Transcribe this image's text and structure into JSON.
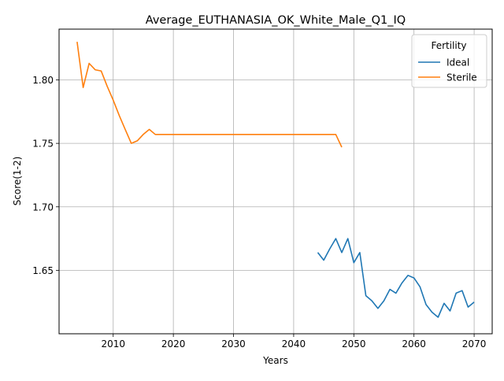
{
  "chart_data": {
    "type": "line",
    "title": "Average_EUTHANASIA_OK_White_Male_Q1_IQ",
    "xlabel": "Years",
    "ylabel": "Score(1-2)",
    "xlim": [
      2001,
      2073
    ],
    "ylim": [
      1.6,
      1.84
    ],
    "grid": true,
    "xticks": [
      2010,
      2020,
      2030,
      2040,
      2050,
      2060,
      2070
    ],
    "xtick_labels": [
      "2010",
      "2020",
      "2030",
      "2040",
      "2050",
      "2060",
      "2070"
    ],
    "yticks": [
      1.65,
      1.7,
      1.75,
      1.8
    ],
    "ytick_labels": [
      "1.65",
      "1.70",
      "1.75",
      "1.80"
    ],
    "legend": {
      "title": "Fertility",
      "position": "top-right"
    },
    "series": [
      {
        "name": "Ideal",
        "color": "#1f77b4",
        "x": [
          2044,
          2045,
          2046,
          2047,
          2048,
          2049,
          2050,
          2051,
          2052,
          2053,
          2054,
          2055,
          2056,
          2057,
          2058,
          2059,
          2060,
          2061,
          2062,
          2063,
          2064,
          2065,
          2066,
          2067,
          2068,
          2069,
          2070
        ],
        "y": [
          1.664,
          1.658,
          1.667,
          1.675,
          1.664,
          1.675,
          1.656,
          1.664,
          1.63,
          1.626,
          1.62,
          1.626,
          1.635,
          1.632,
          1.64,
          1.646,
          1.644,
          1.637,
          1.623,
          1.617,
          1.613,
          1.624,
          1.618,
          1.632,
          1.634,
          1.621,
          1.625
        ]
      },
      {
        "name": "Sterile",
        "color": "#ff7f0e",
        "x": [
          2004,
          2005,
          2006,
          2007,
          2008,
          2009,
          2010,
          2011,
          2012,
          2013,
          2014,
          2015,
          2016,
          2017,
          2018,
          2019,
          2020,
          2025,
          2030,
          2035,
          2040,
          2045,
          2047,
          2048
        ],
        "y": [
          1.83,
          1.794,
          1.813,
          1.808,
          1.807,
          1.795,
          1.784,
          1.772,
          1.761,
          1.75,
          1.752,
          1.757,
          1.761,
          1.757,
          1.757,
          1.757,
          1.757,
          1.757,
          1.757,
          1.757,
          1.757,
          1.757,
          1.757,
          1.747
        ]
      }
    ]
  }
}
